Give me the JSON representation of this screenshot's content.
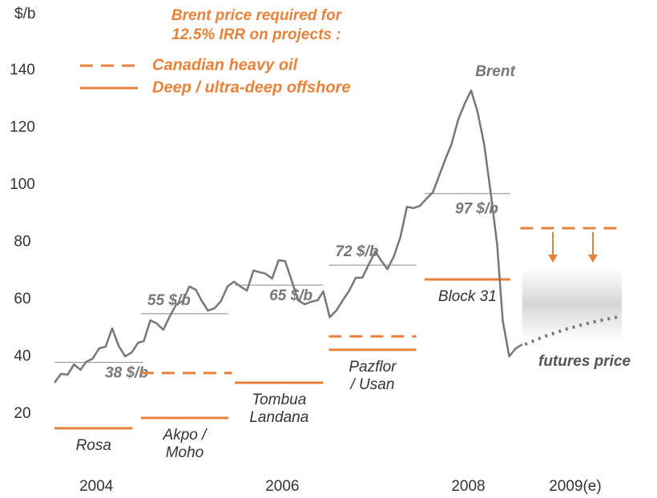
{
  "chart_data": {
    "type": "line",
    "y_label": "$/b",
    "legend_title": [
      "Brent price required for",
      "12.5% IRR on projects :"
    ],
    "legend": [
      {
        "name": "Canadian heavy oil",
        "style": "dashed"
      },
      {
        "name": "Deep / ultra-deep offshore",
        "style": "solid"
      }
    ],
    "required_color": "#e8823a",
    "average_color": "#888888",
    "ylim": [
      10,
      150
    ],
    "yticks": [
      20,
      40,
      60,
      80,
      100,
      120,
      140
    ],
    "xlim": [
      2004,
      2010.1
    ],
    "xticks": [
      {
        "value": 2004.45,
        "label": "2004"
      },
      {
        "value": 2006.45,
        "label": "2006"
      },
      {
        "value": 2008.45,
        "label": "2008"
      },
      {
        "value": 2009.6,
        "label": "2009(e)"
      }
    ],
    "series": [
      {
        "name": "Brent",
        "color": "#777777",
        "style": "solid",
        "x": [
          2004.0,
          2004.07,
          2004.14,
          2004.21,
          2004.28,
          2004.34,
          2004.41,
          2004.48,
          2004.55,
          2004.62,
          2004.69,
          2004.76,
          2004.83,
          2004.9,
          2004.96,
          2005.03,
          2005.1,
          2005.17,
          2005.24,
          2005.31,
          2005.38,
          2005.45,
          2005.52,
          2005.58,
          2005.65,
          2005.72,
          2005.79,
          2005.86,
          2005.93,
          2006.0,
          2006.07,
          2006.14,
          2006.21,
          2006.27,
          2006.34,
          2006.41,
          2006.48,
          2006.55,
          2006.62,
          2006.69,
          2006.76,
          2006.83,
          2006.89,
          2006.96,
          2007.03,
          2007.1,
          2007.17,
          2007.24,
          2007.31,
          2007.38,
          2007.45,
          2007.51,
          2007.58,
          2007.65,
          2007.72,
          2007.79,
          2007.86,
          2007.93,
          2008.0,
          2008.07,
          2008.14,
          2008.2,
          2008.27,
          2008.34,
          2008.41,
          2008.48,
          2008.55,
          2008.62,
          2008.69,
          2008.76,
          2008.82,
          2008.89,
          2008.96,
          2009.03
        ],
        "values": [
          30.9,
          34.0,
          33.7,
          37.3,
          35.4,
          38.2,
          39.3,
          42.9,
          43.5,
          49.9,
          43.8,
          40.1,
          41.5,
          44.9,
          45.4,
          52.7,
          51.6,
          49.4,
          54.1,
          58.3,
          59.4,
          64.5,
          63.4,
          59.7,
          56.1,
          56.9,
          59.4,
          64.5,
          66.2,
          64.5,
          63.1,
          70.1,
          69.5,
          69.0,
          67.3,
          73.7,
          73.4,
          66.7,
          59.7,
          58.3,
          59.2,
          59.7,
          62.8,
          53.8,
          56.1,
          59.7,
          63.1,
          67.6,
          67.6,
          72.3,
          76.8,
          73.7,
          70.6,
          75.1,
          81.8,
          92.4,
          91.9,
          92.7,
          95.2,
          97.5,
          103.6,
          108.7,
          114.3,
          122.7,
          128.3,
          133.0,
          125.5,
          114.3,
          97.5,
          79.3,
          52.7,
          40.1,
          42.9,
          44.3
        ]
      },
      {
        "name": "futures price",
        "color": "#777777",
        "style": "dotted",
        "x": [
          2009.06,
          2009.27,
          2009.53,
          2009.79,
          2010.09
        ],
        "values": [
          44.3,
          47.1,
          49.9,
          52.1,
          54.1
        ]
      }
    ],
    "averages": [
      {
        "value": 38,
        "label": "38 $/b",
        "x": [
          2004.0,
          2004.95
        ]
      },
      {
        "value": 55,
        "label": "55 $/b",
        "x": [
          2004.93,
          2005.87
        ]
      },
      {
        "value": 65,
        "label": "65 $/b",
        "x": [
          2005.94,
          2006.89
        ]
      },
      {
        "value": 72,
        "label": "72 $/b",
        "x": [
          2006.95,
          2007.89
        ]
      },
      {
        "value": 97,
        "label": "97 $/b",
        "x": [
          2007.98,
          2008.9
        ]
      }
    ],
    "projects": [
      {
        "label": [
          "Rosa"
        ],
        "value": 15.0,
        "x": [
          2004.0,
          2004.84
        ]
      },
      {
        "label": [
          "Akpo /",
          "Moho"
        ],
        "value": 18.6,
        "x": [
          2004.93,
          2005.87
        ]
      },
      {
        "label": [
          "Tombua",
          "Landana"
        ],
        "value": 30.9,
        "x": [
          2005.94,
          2006.89
        ]
      },
      {
        "label": [
          "Pazflor",
          "/ Usan"
        ],
        "value": 42.4,
        "x": [
          2006.95,
          2007.89
        ]
      },
      {
        "label": [
          "Block 31"
        ],
        "value": 67.0,
        "x": [
          2007.98,
          2008.9
        ]
      }
    ],
    "heavy_oil": [
      {
        "value": 34.3,
        "x": [
          2004.93,
          2005.91
        ]
      },
      {
        "value": 47.1,
        "x": [
          2006.95,
          2007.89
        ]
      },
      {
        "value": 84.9,
        "x": [
          2009.01,
          2010.09
        ]
      }
    ]
  }
}
